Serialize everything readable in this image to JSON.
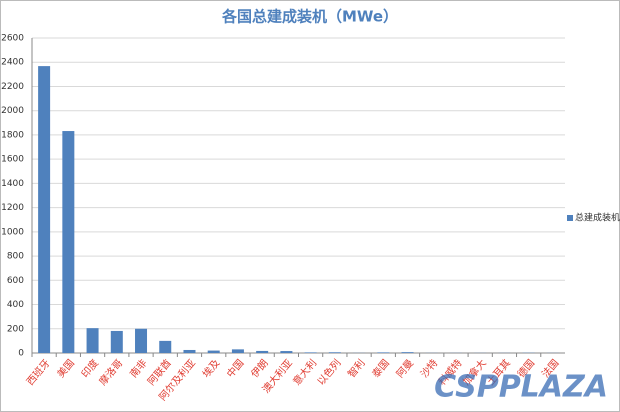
{
  "chart_data": {
    "type": "bar",
    "title": "各国总建成装机（MWe）",
    "categories": [
      "西班牙",
      "美国",
      "印度",
      "摩洛哥",
      "南非",
      "阿联酋",
      "阿尔及利亚",
      "埃及",
      "中国",
      "伊朗",
      "澳大利亚",
      "意大利",
      "以色列",
      "智利",
      "泰国",
      "阿曼",
      "沙特",
      "科威特",
      "加拿大",
      "土耳其",
      "德国",
      "法国"
    ],
    "series": [
      {
        "name": "总建成装机",
        "color": "#4f81bd",
        "values": [
          2368,
          1832,
          205,
          182,
          200,
          100,
          25,
          20,
          30,
          17,
          16,
          5,
          6,
          1,
          5,
          7,
          1,
          1,
          1,
          1,
          2,
          1
        ]
      }
    ],
    "ylim": [
      0,
      2600
    ],
    "yticks": [
      0,
      200,
      400,
      600,
      800,
      1000,
      1200,
      1400,
      1600,
      1800,
      2000,
      2200,
      2400,
      2600
    ],
    "grid": true,
    "legend": "right",
    "category_label_color": "#e03c31",
    "watermark": "CSPPLAZA"
  }
}
